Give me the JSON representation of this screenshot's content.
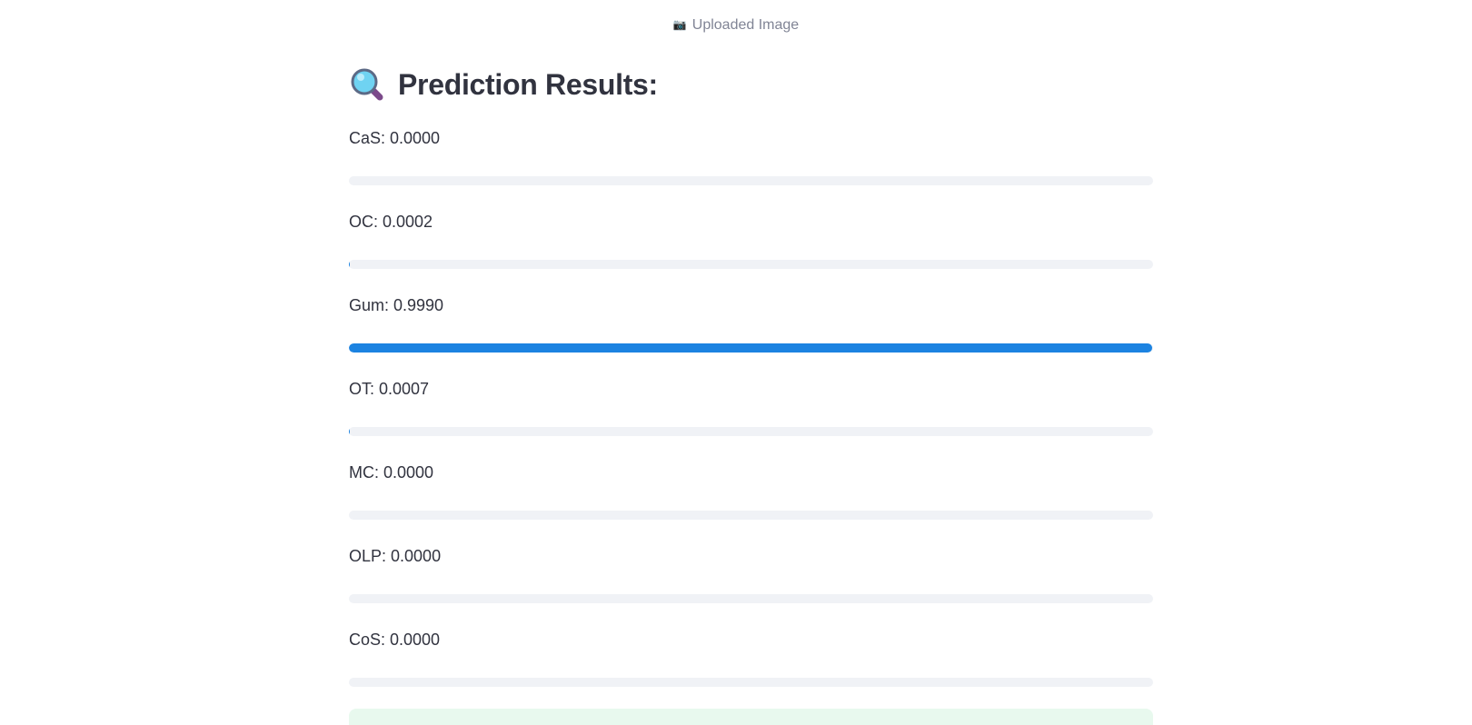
{
  "caption": {
    "icon": "camera-icon",
    "text": "Uploaded Image"
  },
  "results": {
    "heading_icon": "magnifying-glass-icon",
    "heading": "Prediction Results:",
    "items": [
      {
        "label": "CaS: 0.0000",
        "value": 0.0
      },
      {
        "label": "OC: 0.0002",
        "value": 0.0002
      },
      {
        "label": "Gum: 0.9990",
        "value": 0.999
      },
      {
        "label": "OT: 0.0007",
        "value": 0.0007
      },
      {
        "label": "MC: 0.0000",
        "value": 0.0
      },
      {
        "label": "OLP: 0.0000",
        "value": 0.0
      },
      {
        "label": "CoS: 0.0000",
        "value": 0.0
      }
    ]
  },
  "colors": {
    "progress_fill": "#1c83e1",
    "progress_track": "#f0f2f6",
    "success_bg": "#e8f9ee"
  }
}
